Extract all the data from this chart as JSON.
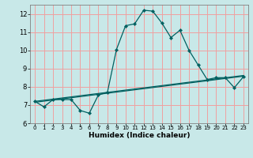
{
  "title": "",
  "xlabel": "Humidex (Indice chaleur)",
  "bg_color": "#c8e8e8",
  "grid_color": "#f0a0a0",
  "line_color": "#006060",
  "xlim": [
    -0.5,
    23.5
  ],
  "ylim": [
    6,
    12.5
  ],
  "yticks": [
    6,
    7,
    8,
    9,
    10,
    11,
    12
  ],
  "xticks": [
    0,
    1,
    2,
    3,
    4,
    5,
    6,
    7,
    8,
    9,
    10,
    11,
    12,
    13,
    14,
    15,
    16,
    17,
    18,
    19,
    20,
    21,
    22,
    23
  ],
  "main_x": [
    0,
    1,
    2,
    3,
    4,
    5,
    6,
    7,
    8,
    9,
    10,
    11,
    12,
    13,
    14,
    15,
    16,
    17,
    18,
    19,
    20,
    21,
    22,
    23
  ],
  "main_y": [
    7.2,
    6.9,
    7.3,
    7.3,
    7.3,
    6.7,
    6.55,
    7.55,
    7.7,
    10.05,
    11.35,
    11.45,
    12.2,
    12.15,
    11.5,
    10.7,
    11.1,
    10.0,
    9.2,
    8.4,
    8.5,
    8.5,
    7.95,
    8.55
  ],
  "line2_x": [
    0,
    23
  ],
  "line2_y": [
    7.2,
    8.62
  ],
  "line3_x": [
    0,
    23
  ],
  "line3_y": [
    7.15,
    8.58
  ]
}
